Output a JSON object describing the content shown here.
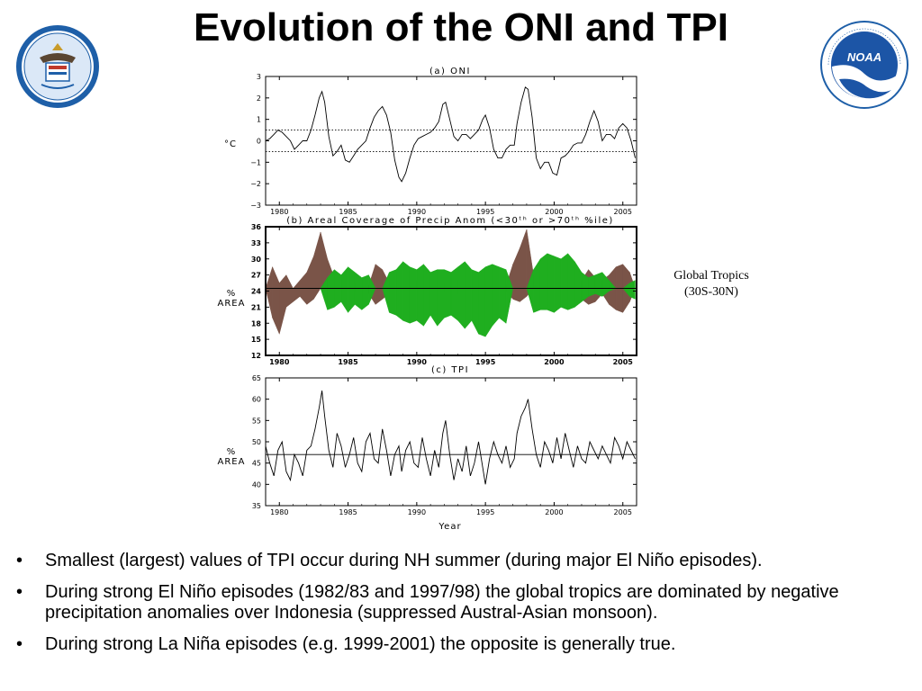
{
  "title": "Evolution of the ONI and TPI",
  "logos": {
    "left": {
      "icon": "department-of-commerce-seal",
      "text": "DEPARTMENT OF COMMERCE · UNITED STATES OF AMERICA"
    },
    "right": {
      "icon": "noaa-logo",
      "text": "NOAA · NATIONAL OCEANIC AND ATMOSPHERIC ADMINISTRATION · U.S. DEPARTMENT OF COMMERCE"
    }
  },
  "side_note": {
    "line1": "Global Tropics",
    "line2": "(30S-30N)"
  },
  "bullets": [
    "Smallest (largest) values of TPI occur during NH summer (during major El Niño episodes).",
    "During strong El Niño episodes (1982/83 and 1997/98) the global tropics are dominated by negative precipitation anomalies over Indonesia (suppressed Austral-Asian monsoon).",
    "During strong La Niña episodes (e.g. 1999-2001) the opposite is generally true."
  ],
  "chart_data": [
    {
      "type": "line",
      "panel": "a",
      "title": "(a) ONI",
      "ylabel": "°C",
      "xlim": [
        1979.0,
        2006.0
      ],
      "ylim": [
        -3,
        3
      ],
      "xticks": [
        1980,
        1985,
        1990,
        1995,
        2000,
        2005
      ],
      "yticks": [
        -3,
        -2,
        -1,
        0,
        1,
        2,
        3
      ],
      "thresholds": [
        0.5,
        -0.5
      ],
      "threshold_style": "dotted",
      "series": [
        {
          "x": [
            1979.0,
            1979.3,
            1979.6,
            1979.9,
            1980.2,
            1980.5,
            1980.8,
            1981.1,
            1981.4,
            1981.7,
            1982.0,
            1982.3,
            1982.6,
            1982.9,
            1983.1,
            1983.3,
            1983.6,
            1983.9,
            1984.2,
            1984.5,
            1984.8,
            1985.1,
            1985.4,
            1985.7,
            1986.0,
            1986.3,
            1986.6,
            1986.9,
            1987.2,
            1987.5,
            1987.8,
            1988.1,
            1988.4,
            1988.7,
            1988.9,
            1989.2,
            1989.5,
            1989.8,
            1990.1,
            1990.4,
            1990.7,
            1991.0,
            1991.3,
            1991.6,
            1991.9,
            1992.1,
            1992.4,
            1992.7,
            1993.0,
            1993.3,
            1993.6,
            1993.9,
            1994.2,
            1994.5,
            1994.8,
            1995.0,
            1995.3,
            1995.6,
            1995.9,
            1996.2,
            1996.5,
            1996.8,
            1997.1,
            1997.3,
            1997.6,
            1997.9,
            1998.1,
            1998.4,
            1998.7,
            1999.0,
            1999.3,
            1999.6,
            1999.9,
            2000.2,
            2000.5,
            2000.8,
            2001.1,
            2001.4,
            2001.7,
            2002.0,
            2002.3,
            2002.6,
            2002.9,
            2003.2,
            2003.5,
            2003.8,
            2004.1,
            2004.4,
            2004.7,
            2005.0,
            2005.3,
            2005.6,
            2005.9
          ],
          "values": [
            0.0,
            0.1,
            0.3,
            0.5,
            0.4,
            0.2,
            0.0,
            -0.4,
            -0.2,
            0.0,
            0.0,
            0.5,
            1.2,
            2.0,
            2.3,
            1.8,
            0.2,
            -0.7,
            -0.5,
            -0.2,
            -0.9,
            -1.0,
            -0.7,
            -0.4,
            -0.2,
            0.0,
            0.6,
            1.1,
            1.4,
            1.6,
            1.2,
            0.4,
            -0.9,
            -1.7,
            -1.9,
            -1.5,
            -0.8,
            -0.2,
            0.1,
            0.2,
            0.3,
            0.4,
            0.6,
            0.9,
            1.7,
            1.8,
            1.0,
            0.2,
            0.0,
            0.3,
            0.3,
            0.1,
            0.3,
            0.5,
            1.0,
            1.2,
            0.6,
            -0.4,
            -0.8,
            -0.8,
            -0.4,
            -0.2,
            -0.2,
            0.8,
            1.8,
            2.5,
            2.4,
            1.1,
            -0.8,
            -1.3,
            -1.0,
            -1.0,
            -1.5,
            -1.6,
            -0.8,
            -0.7,
            -0.5,
            -0.2,
            -0.1,
            -0.1,
            0.3,
            0.9,
            1.4,
            0.9,
            0.0,
            0.3,
            0.3,
            0.1,
            0.6,
            0.8,
            0.6,
            0.0,
            -0.8
          ]
        }
      ]
    },
    {
      "type": "area",
      "panel": "b",
      "title": "(b) Areal Coverage of Precip Anom (<30ᵗʰ or >70ᵗʰ %ile)",
      "ylabel": [
        "%",
        "AREA"
      ],
      "xlim": [
        1979.0,
        2006.0
      ],
      "ylim": [
        12,
        36
      ],
      "xticks": [
        1980,
        1985,
        1990,
        1995,
        2000,
        2005
      ],
      "yticks": [
        12,
        15,
        18,
        21,
        24,
        27,
        30,
        33,
        36
      ],
      "reference_value": 24.5,
      "colors": {
        "brown": "#7a5448",
        "green": "#1fae1f"
      },
      "series": [
        {
          "color": "brown",
          "x": [
            1979.0,
            1979.5,
            1980.0,
            1980.5,
            1981.0,
            1981.5,
            1982.0,
            1982.5,
            1983.0,
            1983.5,
            1984.0,
            1984.5,
            1985.0,
            1985.5,
            1986.0,
            1986.5,
            1987.0,
            1987.5,
            1988.0,
            1988.5,
            1989.0,
            1989.5,
            1990.0,
            1990.5,
            1991.0,
            1991.5,
            1992.0,
            1992.5,
            1993.0,
            1993.5,
            1994.0,
            1994.5,
            1995.0,
            1995.5,
            1996.0,
            1996.5,
            1997.0,
            1997.5,
            1998.0,
            1998.5,
            1999.0,
            1999.5,
            2000.0,
            2000.5,
            2001.0,
            2001.5,
            2002.0,
            2002.5,
            2003.0,
            2003.5,
            2004.0,
            2004.5,
            2005.0,
            2005.5,
            2005.9
          ],
          "values": [
            24.5,
            28.5,
            25.5,
            27.0,
            24.5,
            26.0,
            27.5,
            30.5,
            35.0,
            30.0,
            26.5,
            24.5,
            24.5,
            25.5,
            24.5,
            25.0,
            29.0,
            28.0,
            25.5,
            24.5,
            24.5,
            25.0,
            26.0,
            25.5,
            24.5,
            26.0,
            25.5,
            24.5,
            26.0,
            25.5,
            24.5,
            25.5,
            26.5,
            24.5,
            24.5,
            25.0,
            29.0,
            32.0,
            35.5,
            27.0,
            24.5,
            24.5,
            24.5,
            24.5,
            24.5,
            24.5,
            26.0,
            28.0,
            26.5,
            26.0,
            27.0,
            28.5,
            29.0,
            27.5,
            24.5
          ],
          "low": [
            24.5,
            19.0,
            16.0,
            21.0,
            22.0,
            23.0,
            21.5,
            22.5,
            24.5,
            24.5,
            23.0,
            24.5,
            24.5,
            24.0,
            24.5,
            23.5,
            21.5,
            22.5,
            23.5,
            24.5,
            24.5,
            24.0,
            24.5,
            24.0,
            24.5,
            24.0,
            24.0,
            24.5,
            23.5,
            24.0,
            24.5,
            24.0,
            23.0,
            24.5,
            24.5,
            24.0,
            22.5,
            22.0,
            23.0,
            24.5,
            24.5,
            24.5,
            24.5,
            24.5,
            24.5,
            24.5,
            22.5,
            21.5,
            22.0,
            23.5,
            21.5,
            20.5,
            20.0,
            22.0,
            24.5
          ]
        },
        {
          "color": "green",
          "x": [
            1979.0,
            1979.5,
            1980.0,
            1980.5,
            1981.0,
            1981.5,
            1982.0,
            1982.5,
            1983.0,
            1983.5,
            1984.0,
            1984.5,
            1985.0,
            1985.5,
            1986.0,
            1986.5,
            1987.0,
            1987.5,
            1988.0,
            1988.5,
            1989.0,
            1989.5,
            1990.0,
            1990.5,
            1991.0,
            1991.5,
            1992.0,
            1992.5,
            1993.0,
            1993.5,
            1994.0,
            1994.5,
            1995.0,
            1995.5,
            1996.0,
            1996.5,
            1997.0,
            1997.5,
            1998.0,
            1998.5,
            1999.0,
            1999.5,
            2000.0,
            2000.5,
            2001.0,
            2001.5,
            2002.0,
            2002.5,
            2003.0,
            2003.5,
            2004.0,
            2004.5,
            2005.0,
            2005.5,
            2005.9
          ],
          "values": [
            24.5,
            24.5,
            24.5,
            24.5,
            24.5,
            24.5,
            24.5,
            24.5,
            24.5,
            26.5,
            28.0,
            27.0,
            28.5,
            27.5,
            26.5,
            27.0,
            24.5,
            24.5,
            27.5,
            28.0,
            29.5,
            28.5,
            28.0,
            29.0,
            27.5,
            28.0,
            28.0,
            27.5,
            28.5,
            29.5,
            28.0,
            27.5,
            28.5,
            29.0,
            28.5,
            28.0,
            24.5,
            24.5,
            24.5,
            28.0,
            30.0,
            31.0,
            30.5,
            30.0,
            31.0,
            29.5,
            27.5,
            26.5,
            27.0,
            27.5,
            26.0,
            24.5,
            24.5,
            25.5,
            26.0
          ],
          "low": [
            24.5,
            24.5,
            24.5,
            24.5,
            24.5,
            24.5,
            24.5,
            24.5,
            24.5,
            20.5,
            21.0,
            22.0,
            20.0,
            21.5,
            20.5,
            21.5,
            24.5,
            24.5,
            20.0,
            19.5,
            18.5,
            18.0,
            18.5,
            17.5,
            19.5,
            17.5,
            19.0,
            19.5,
            18.5,
            17.0,
            18.5,
            16.0,
            15.5,
            17.5,
            19.0,
            18.0,
            24.5,
            24.5,
            24.5,
            20.0,
            20.5,
            20.5,
            20.0,
            21.0,
            20.5,
            21.0,
            22.0,
            23.0,
            23.5,
            23.0,
            24.0,
            24.5,
            24.5,
            23.0,
            22.5
          ]
        }
      ]
    },
    {
      "type": "line",
      "panel": "c",
      "title": "(c) TPI",
      "xlabel": "Year",
      "ylabel": [
        "%",
        "AREA"
      ],
      "xlim": [
        1979.0,
        2006.0
      ],
      "ylim": [
        35,
        65
      ],
      "xticks": [
        1980,
        1985,
        1990,
        1995,
        2000,
        2005
      ],
      "yticks": [
        35,
        40,
        45,
        50,
        55,
        60,
        65
      ],
      "reference_value": 47,
      "series": [
        {
          "x": [
            1979.0,
            1979.3,
            1979.6,
            1979.9,
            1980.2,
            1980.5,
            1980.8,
            1981.1,
            1981.4,
            1981.7,
            1982.0,
            1982.3,
            1982.6,
            1982.9,
            1983.1,
            1983.3,
            1983.6,
            1983.9,
            1984.2,
            1984.5,
            1984.8,
            1985.1,
            1985.4,
            1985.7,
            1986.0,
            1986.3,
            1986.6,
            1986.9,
            1987.2,
            1987.5,
            1987.8,
            1988.1,
            1988.4,
            1988.7,
            1988.9,
            1989.2,
            1989.5,
            1989.8,
            1990.1,
            1990.4,
            1990.7,
            1991.0,
            1991.3,
            1991.6,
            1991.9,
            1992.1,
            1992.4,
            1992.7,
            1993.0,
            1993.3,
            1993.6,
            1993.9,
            1994.2,
            1994.5,
            1994.8,
            1995.0,
            1995.3,
            1995.6,
            1995.9,
            1996.2,
            1996.5,
            1996.8,
            1997.1,
            1997.3,
            1997.6,
            1997.9,
            1998.1,
            1998.4,
            1998.7,
            1999.0,
            1999.3,
            1999.6,
            1999.9,
            2000.2,
            2000.5,
            2000.8,
            2001.1,
            2001.4,
            2001.7,
            2002.0,
            2002.3,
            2002.6,
            2002.9,
            2003.2,
            2003.5,
            2003.8,
            2004.1,
            2004.4,
            2004.7,
            2005.0,
            2005.3,
            2005.6,
            2005.9
          ],
          "values": [
            49,
            45,
            42,
            48,
            50,
            43,
            41,
            47,
            45,
            42,
            48,
            49,
            53,
            58,
            62,
            56,
            48,
            44,
            52,
            49,
            44,
            47,
            51,
            45,
            43,
            50,
            52,
            46,
            45,
            53,
            48,
            42,
            47,
            49,
            43,
            48,
            50,
            45,
            44,
            51,
            46,
            42,
            48,
            44,
            52,
            55,
            47,
            41,
            46,
            43,
            49,
            42,
            45,
            50,
            44,
            40,
            46,
            50,
            47,
            45,
            49,
            44,
            46,
            52,
            56,
            58,
            60,
            53,
            47,
            44,
            50,
            48,
            45,
            51,
            46,
            52,
            48,
            44,
            49,
            46,
            45,
            50,
            48,
            46,
            49,
            47,
            45,
            51,
            49,
            46,
            50,
            48,
            46
          ]
        }
      ]
    }
  ]
}
